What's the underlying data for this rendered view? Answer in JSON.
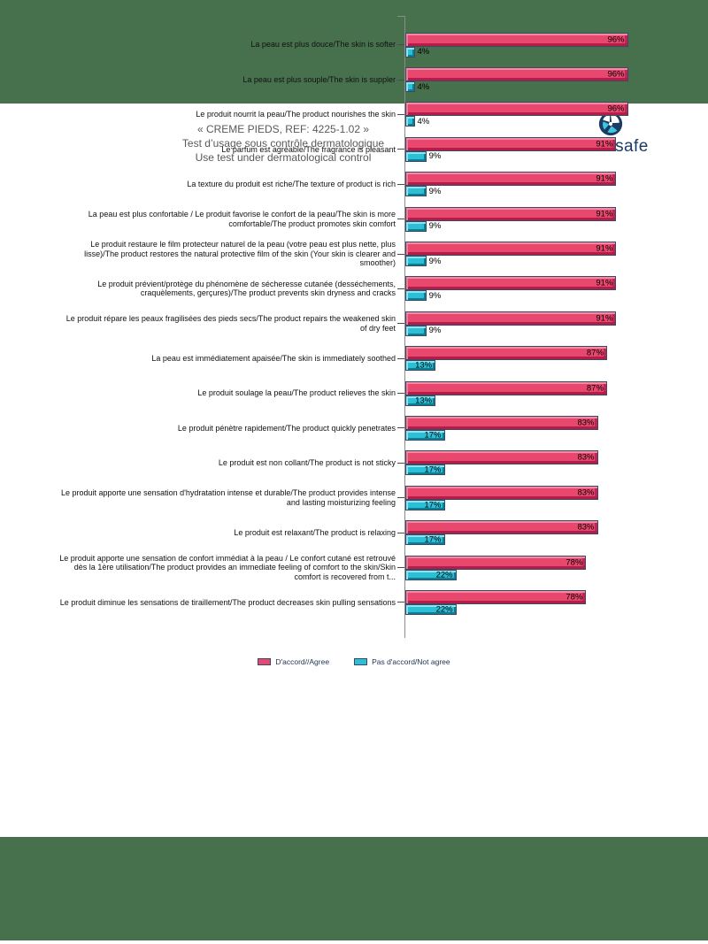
{
  "page": {
    "band_color": "#47704d"
  },
  "header": {
    "title_line1": "« CREME PIEDS, REF: 4225-1.02 »",
    "title_line2": "Test d’usage sous contrôle dermatologique",
    "title_line3": "Use test under dermatological control"
  },
  "logo": {
    "euro": "EURO",
    "safe": "safe",
    "icon": "globe-icon",
    "navy": "#1c3a66",
    "cyan": "#3fc6dc"
  },
  "legend": {
    "items": [
      {
        "label": "D'accord//Agree",
        "color": "#e8476e"
      },
      {
        "label": "Pas d'accord/Not agree",
        "color": "#2cc0d7"
      }
    ]
  },
  "chart_data": {
    "type": "bar",
    "orientation": "horizontal",
    "xlim": [
      0,
      100
    ],
    "value_suffix": "%",
    "grid": false,
    "legend_position": "bottom",
    "axis_color": "#8c8c8c",
    "categories": [
      "La peau est plus douce/The skin is softer",
      "La peau est plus souple/The skin is suppler",
      "Le produit nourrit la peau/The product nourishes the skin",
      "Le parfum est agréable/The fragrance is pleasant",
      "La texture du produit est riche/The texture of product is rich",
      "La peau est plus confortable / Le produit favorise le confort de la peau/The skin is more comfortable/The product promotes skin comfort",
      "Le produit restaure le film protecteur naturel de la peau (votre peau est plus nette, plus lisse)/The product restores the natural protective film of the skin (Your skin is clearer and smoother)",
      "Le produit prévient/protège du phénomène de sécheresse cutanée (desséchements, craquèlements, gerçures)/The product prevents skin dryness and cracks",
      "Le produit répare les peaux fragilisées des pieds secs/The product repairs the weakened skin of dry feet",
      "La peau est immédiatement apaisée/The skin is immediately soothed",
      "Le produit soulage la peau/The product relieves the skin",
      "Le produit pénètre rapidement/The product quickly penetrates",
      "Le produit est non collant/The product is not sticky",
      "Le produit apporte une sensation d'hydratation intense et durable/The product provides intense and lasting moisturizing feeling",
      "Le produit est relaxant/The product is relaxing",
      "Le produit apporte une sensation de confort immédiat à la peau / Le confort cutané est retrouvé dès la 1ère utilisation/The product provides an immediate feeling of comfort to the skin/Skin comfort is recovered from t...",
      "Le produit diminue les sensations de tiraillement/The product decreases skin pulling sensations"
    ],
    "series": [
      {
        "name": "D'accord//Agree",
        "color": "#e8476e",
        "values": [
          96,
          96,
          96,
          91,
          91,
          91,
          91,
          91,
          91,
          87,
          87,
          83,
          83,
          83,
          83,
          78,
          78
        ]
      },
      {
        "name": "Pas d'accord/Not agree",
        "color": "#2cc0d7",
        "values": [
          4,
          4,
          4,
          9,
          9,
          9,
          9,
          9,
          9,
          13,
          13,
          17,
          17,
          17,
          17,
          22,
          22
        ]
      }
    ]
  }
}
